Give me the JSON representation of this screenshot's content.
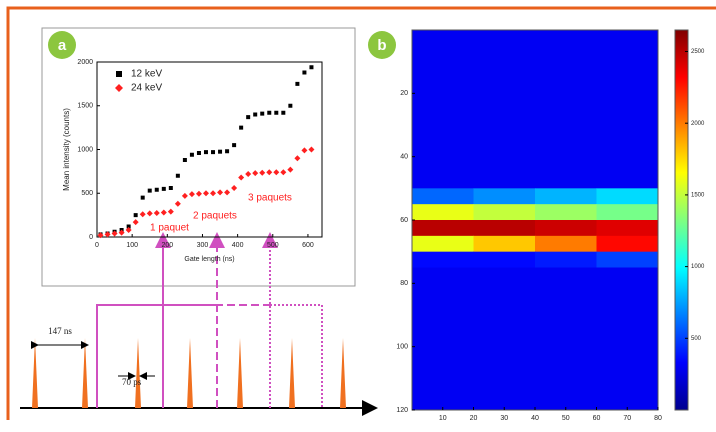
{
  "labels": [
    "a",
    "b"
  ],
  "annotations": {
    "paquets": [
      "1 paquet",
      "2 paquets",
      "3 paquets"
    ],
    "period": "147 ns",
    "width": "70 ps"
  },
  "chart_data": [
    {
      "type": "scatter",
      "xlabel": "Gate length (ns)",
      "ylabel": "Mean intensity (counts)",
      "xlim": [
        0,
        640
      ],
      "ylim": [
        0,
        2000
      ],
      "xticks": [
        0,
        100,
        200,
        300,
        400,
        500,
        600
      ],
      "yticks": [
        0,
        500,
        1000,
        1500,
        2000
      ],
      "legend": "top-left",
      "x": [
        10,
        30,
        50,
        70,
        90,
        110,
        130,
        150,
        170,
        190,
        210,
        230,
        250,
        270,
        290,
        310,
        330,
        350,
        370,
        390,
        410,
        430,
        450,
        470,
        490,
        510,
        530,
        550,
        570,
        590,
        610
      ],
      "series": [
        {
          "name": "12 keV",
          "color": "#000000",
          "marker": "square",
          "values": [
            30,
            40,
            60,
            80,
            120,
            250,
            450,
            530,
            540,
            550,
            560,
            700,
            880,
            940,
            960,
            970,
            970,
            975,
            980,
            1050,
            1250,
            1370,
            1400,
            1410,
            1420,
            1420,
            1420,
            1500,
            1750,
            1880,
            1940
          ]
        },
        {
          "name": "24 keV",
          "color": "#ff2020",
          "marker": "diamond",
          "values": [
            20,
            30,
            40,
            50,
            80,
            170,
            260,
            270,
            275,
            280,
            290,
            380,
            470,
            490,
            495,
            500,
            500,
            510,
            510,
            560,
            680,
            720,
            730,
            735,
            740,
            740,
            740,
            770,
            900,
            990,
            1000
          ]
        }
      ]
    },
    {
      "type": "heatmap",
      "xlim": [
        0,
        80
      ],
      "ylim": [
        120,
        0
      ],
      "zlim": [
        0,
        2650
      ],
      "xticks": [
        10,
        20,
        30,
        40,
        50,
        60,
        70,
        80
      ],
      "yticks": [
        20,
        40,
        60,
        80,
        100,
        120
      ],
      "zticks": [
        500,
        1000,
        1500,
        2000,
        2500
      ],
      "xbins": [
        0,
        20,
        40,
        60,
        80
      ],
      "ybins": [
        0,
        5,
        10,
        15,
        20,
        25,
        30,
        35,
        40,
        45,
        50,
        55,
        60,
        65,
        70,
        75,
        80,
        85,
        90,
        95,
        100,
        105,
        110,
        115,
        120
      ],
      "z": [
        [
          300,
          300,
          300,
          300
        ],
        [
          300,
          300,
          300,
          300
        ],
        [
          300,
          300,
          300,
          300
        ],
        [
          300,
          300,
          300,
          300
        ],
        [
          300,
          300,
          300,
          300
        ],
        [
          300,
          300,
          300,
          300
        ],
        [
          300,
          300,
          300,
          300
        ],
        [
          300,
          300,
          300,
          300
        ],
        [
          300,
          300,
          300,
          300
        ],
        [
          300,
          300,
          300,
          300
        ],
        [
          600,
          700,
          800,
          900
        ],
        [
          1600,
          1500,
          1400,
          1300
        ],
        [
          2500,
          2500,
          2450,
          2400
        ],
        [
          1600,
          1800,
          2000,
          2300
        ],
        [
          350,
          350,
          400,
          500
        ],
        [
          300,
          300,
          300,
          300
        ],
        [
          300,
          300,
          300,
          300
        ],
        [
          300,
          300,
          300,
          300
        ],
        [
          300,
          300,
          300,
          300
        ],
        [
          300,
          300,
          300,
          300
        ],
        [
          300,
          300,
          300,
          300
        ],
        [
          300,
          300,
          300,
          300
        ],
        [
          300,
          300,
          300,
          300
        ],
        [
          300,
          300,
          300,
          300
        ]
      ]
    }
  ]
}
